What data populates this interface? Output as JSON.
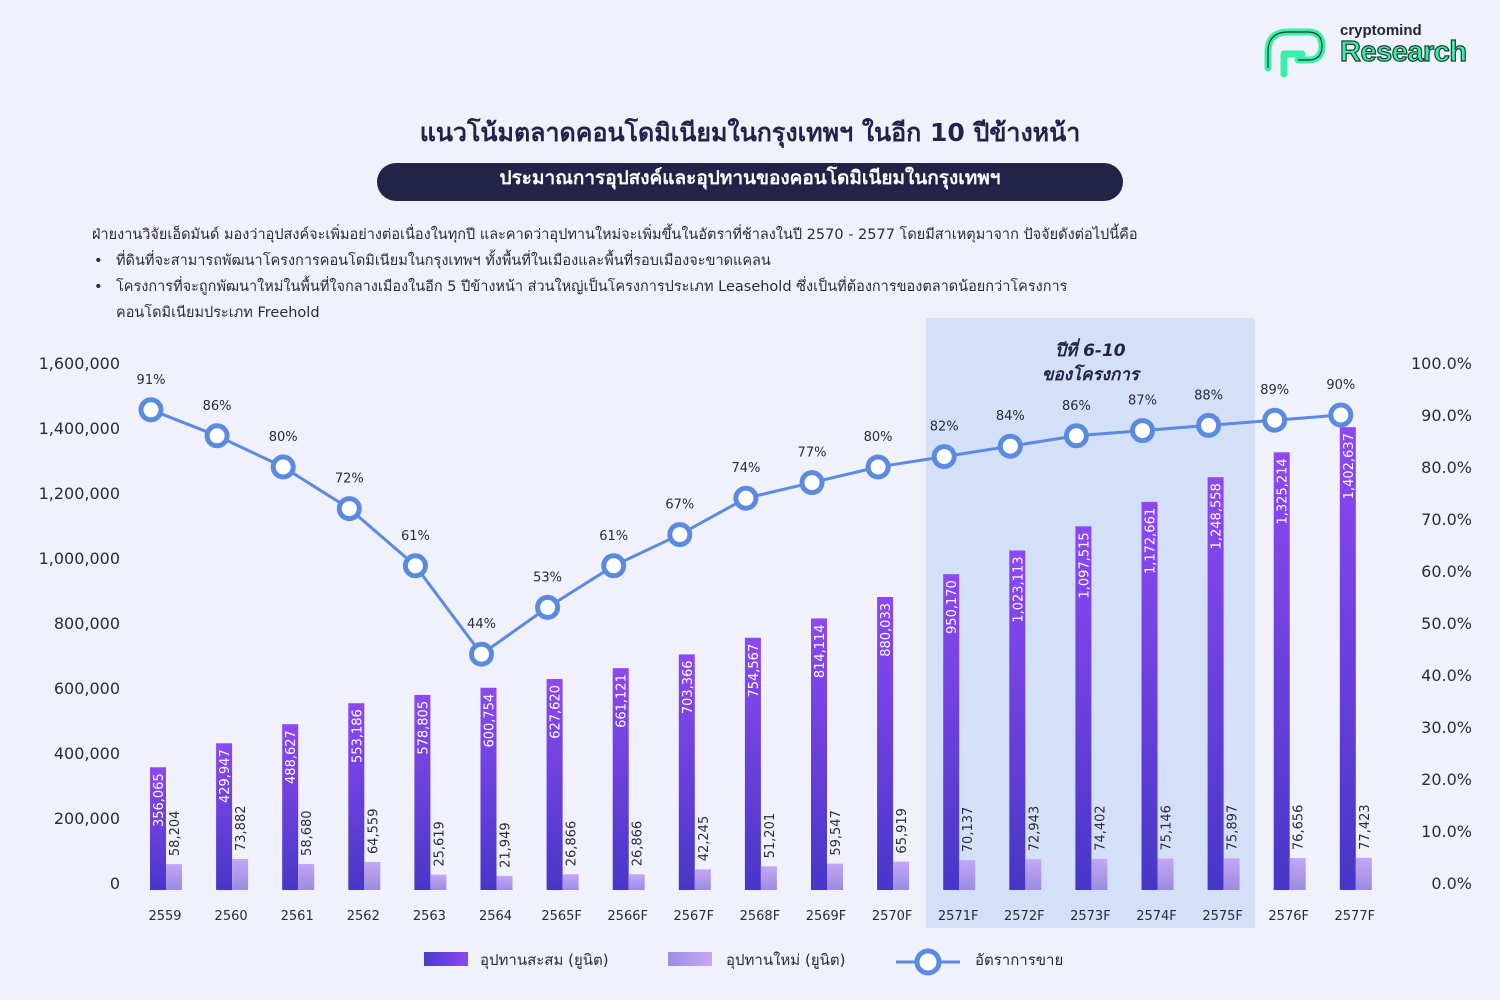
{
  "brand": {
    "top": "cryptomind",
    "main": "Research"
  },
  "title": "แนวโน้มตลาดคอนโดมิเนียมในกรุงเทพฯ ในอีก 10 ปีข้างหน้า",
  "subtitle": "ประมาณการอุปสงค์และอุปทานของคอนโดมิเนียมในกรุงเทพฯ",
  "description": {
    "intro": "ฝ่ายงานวิจัยเอ็ดมันด์ มองว่าอุปสงค์จะเพิ่มอย่างต่อเนื่องในทุกปี และคาดว่าอุปทานใหม่จะเพิ่มขึ้นในอัตราที่ช้าลงในปี 2570 - 2577 โดยมีสาเหตุมาจาก ปัจจัยดังต่อไปนี้คือ",
    "bullet1": "ที่ดินที่จะสามารถพัฒนาโครงการคอนโดมิเนียมในกรุงเทพฯ ทั้งพื้นที่ในเมืองและพื้นที่รอบเมืองจะขาดแคลน",
    "bullet2": "โครงการที่จะถูกพัฒนาใหม่ในพื้นที่ใจกลางเมืองในอีก 5 ปีข้างหน้า ส่วนใหญ่เป็นโครงการประเภท Leasehold ซึ่งเป็นที่ต้องการของตลาดน้อยกว่าโครงการ",
    "bullet2_cont": "คอนโดมิเนียมประเภท Freehold"
  },
  "chart_data": {
    "type": "bar",
    "title": "ประมาณการอุปสงค์และอุปทานของคอนโดมิเนียมในกรุงเทพฯ",
    "categories": [
      "2559",
      "2560",
      "2561",
      "2562",
      "2563",
      "2564",
      "2565F",
      "2566F",
      "2567F",
      "2568F",
      "2569F",
      "2570F",
      "2571F",
      "2572F",
      "2573F",
      "2574F",
      "2575F",
      "2576F",
      "2577F"
    ],
    "series": [
      {
        "name": "อุปทานสะสม (ยูนิต)",
        "type": "bar",
        "axis": "left",
        "color": "#7a44e6",
        "values": [
          356065,
          429947,
          488627,
          553186,
          578805,
          600754,
          627620,
          661121,
          703366,
          754567,
          814114,
          880033,
          950170,
          1023113,
          1097515,
          1172661,
          1248558,
          1325214,
          1402637
        ],
        "labels": [
          "356,065",
          "429,947",
          "488,627",
          "553,186",
          "578,805",
          "600,754",
          "627,620",
          "661,121",
          "703,366",
          "754,567",
          "814,114",
          "880,033",
          "950,170",
          "1,023,113",
          "1,097,515",
          "1,172,661",
          "1,248,558",
          "1,325,214",
          "1,402,637"
        ]
      },
      {
        "name": "อุปทานใหม่ (ยูนิต)",
        "type": "bar",
        "axis": "left",
        "color": "#b79cf0",
        "values": [
          58204,
          73882,
          58680,
          64559,
          25619,
          21949,
          26866,
          26866,
          42245,
          51201,
          59547,
          65919,
          70137,
          72943,
          74402,
          75146,
          75897,
          76656,
          77423
        ],
        "labels": [
          "58,204",
          "73,882",
          "58,680",
          "64,559",
          "25,619",
          "21,949",
          "26,866",
          "26,866",
          "42,245",
          "51,201",
          "59,547",
          "65,919",
          "70,137",
          "72,943",
          "74,402",
          "75,146",
          "75,897",
          "76,656",
          "77,423"
        ]
      },
      {
        "name": "อัตราการขาย",
        "type": "line",
        "axis": "right",
        "color": "#5b8be0",
        "values": [
          91,
          86,
          80,
          72,
          61,
          44,
          53,
          61,
          67,
          74,
          77,
          80,
          82,
          84,
          86,
          87,
          88,
          89,
          90
        ],
        "labels": [
          "91%",
          "86%",
          "80%",
          "72%",
          "61%",
          "44%",
          "53%",
          "61%",
          "67%",
          "74%",
          "77%",
          "80%",
          "82%",
          "84%",
          "86%",
          "87%",
          "88%",
          "89%",
          "90%"
        ]
      }
    ],
    "ylim": [
      0,
      1600000
    ],
    "yticks": [
      "0",
      "200,000",
      "400,000",
      "600,000",
      "800,000",
      "1,000,000",
      "1,200,000",
      "1,400,000",
      "1,600,000"
    ],
    "y2lim": [
      0,
      100
    ],
    "y2ticks": [
      "0.0%",
      "10.0%",
      "20.0%",
      "30.0%",
      "40.0%",
      "50.0%",
      "60.0%",
      "70.0%",
      "80.0%",
      "90.0%",
      "100.0%"
    ],
    "highlight": {
      "from": "2571F",
      "to": "2575F",
      "line1": "ปีที่ 6-10",
      "line2": "ของโครงการ"
    },
    "legend": [
      "อุปทานสะสม (ยูนิต)",
      "อุปทานใหม่ (ยูนิต)",
      "อัตราการขาย"
    ]
  }
}
